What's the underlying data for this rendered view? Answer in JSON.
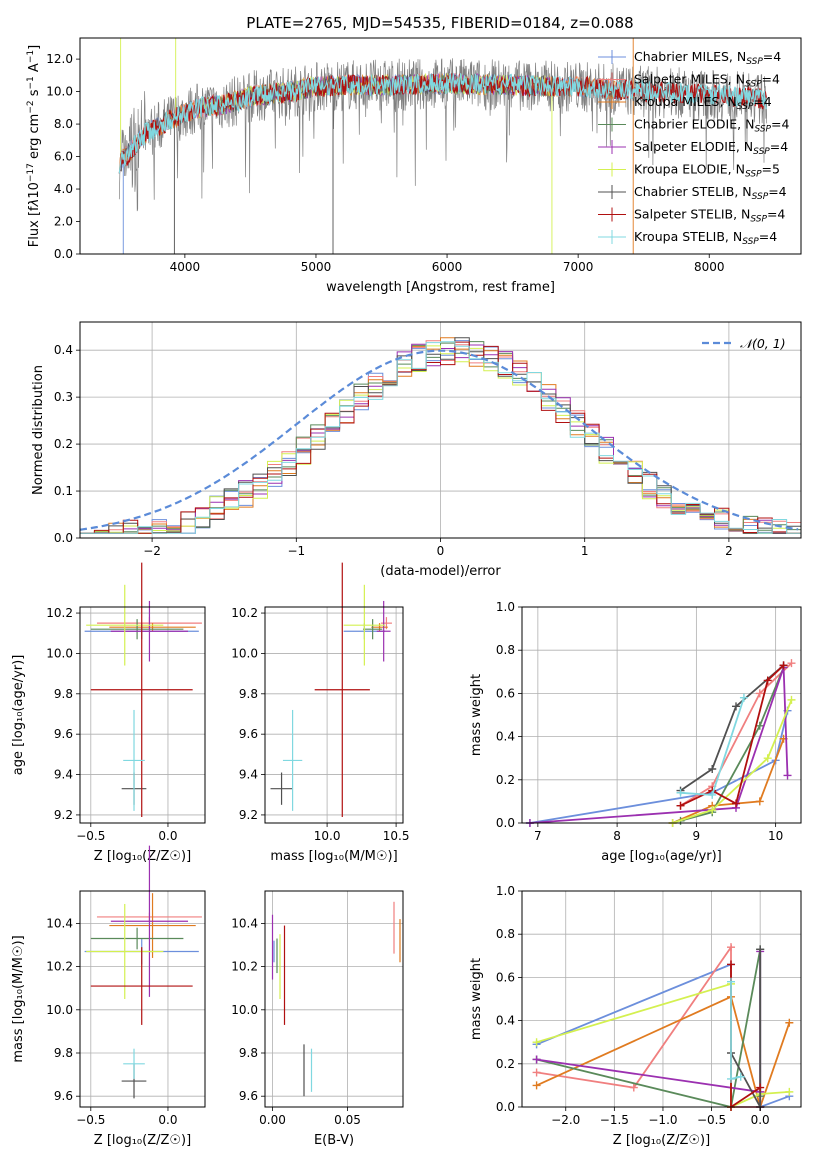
{
  "title": "PLATE=2765, MJD=54535, FIBERID=0184, z=0.088",
  "colors": {
    "chab_miles": "#6c8fdc",
    "salp_miles": "#f07f7f",
    "krou_miles": "#e07b20",
    "chab_elodie": "#5a8a5a",
    "salp_elodie": "#9b30b0",
    "krou_elodie": "#d4f050",
    "chab_stelib": "#505050",
    "salp_stelib": "#b01010",
    "krou_stelib": "#80d8e0",
    "data": "#808080",
    "normal": "#5b8bd8"
  },
  "chart_data": [
    {
      "id": "spectrum",
      "type": "line",
      "xlabel": "wavelength [Angstrom, rest frame]",
      "ylabel_html": "Flux [f<tspan font-style='italic'>λ</tspan>10<tspan dy='-5' font-size='9'>−17</tspan><tspan dy='5'> erg cm</tspan><tspan dy='-5' font-size='9'>−2</tspan><tspan dy='5'> s</tspan><tspan dy='-5' font-size='9'>−1</tspan><tspan dy='5'> A</tspan><tspan dy='-5' font-size='9'>−1</tspan><tspan dy='5'>]</tspan>",
      "xlim": [
        3200,
        8700
      ],
      "ylim": [
        0,
        13.3
      ],
      "xticks": [
        4000,
        5000,
        6000,
        7000,
        8000
      ],
      "yticks": [
        0,
        2,
        4,
        6,
        8,
        10,
        12
      ],
      "continuum": [
        [
          3500,
          5.6
        ],
        [
          3700,
          7.4
        ],
        [
          3900,
          8.3
        ],
        [
          4100,
          9.0
        ],
        [
          4300,
          9.2
        ],
        [
          4500,
          9.7
        ],
        [
          4800,
          10.0
        ],
        [
          5000,
          10.3
        ],
        [
          5200,
          10.4
        ],
        [
          5500,
          10.4
        ],
        [
          6000,
          10.5
        ],
        [
          6500,
          10.4
        ],
        [
          7000,
          10.3
        ],
        [
          7500,
          10.0
        ],
        [
          8000,
          9.8
        ],
        [
          8500,
          9.5
        ]
      ],
      "legend": [
        {
          "label": "Chabrier MILES, N",
          "sub": "SSP",
          "suffix": "=4",
          "color_key": "chab_miles"
        },
        {
          "label": "Salpeter MILES, N",
          "sub": "SSP",
          "suffix": "=4",
          "color_key": "salp_miles"
        },
        {
          "label": "Kroupa MILES, N",
          "sub": "SSP",
          "suffix": "=4",
          "color_key": "krou_miles"
        },
        {
          "label": "Chabrier ELODIE, N",
          "sub": "SSP",
          "suffix": "=4",
          "color_key": "chab_elodie"
        },
        {
          "label": "Salpeter ELODIE, N",
          "sub": "SSP",
          "suffix": "=4",
          "color_key": "salp_elodie"
        },
        {
          "label": "Kroupa ELODIE, N",
          "sub": "SSP",
          "suffix": "=5",
          "color_key": "krou_elodie"
        },
        {
          "label": "Chabrier STELIB, N",
          "sub": "SSP",
          "suffix": "=4",
          "color_key": "chab_stelib"
        },
        {
          "label": "Salpeter STELIB, N",
          "sub": "SSP",
          "suffix": "=4",
          "color_key": "salp_stelib"
        },
        {
          "label": "Kroupa STELIB, N",
          "sub": "SSP",
          "suffix": "=4",
          "color_key": "krou_stelib"
        }
      ]
    },
    {
      "id": "residuals",
      "type": "histogram",
      "xlabel": "(data-model)/error",
      "ylabel": "Normed distribution",
      "xlim": [
        -2.5,
        2.5
      ],
      "ylim": [
        0,
        0.46
      ],
      "xticks": [
        -2,
        -1,
        0,
        1,
        2
      ],
      "xtick_labels": [
        "−2",
        "−1",
        "0",
        "1",
        "2"
      ],
      "yticks": [
        0.0,
        0.1,
        0.2,
        0.3,
        0.4
      ],
      "ytick_labels": [
        "0.0",
        "0.1",
        "0.2",
        "0.3",
        "0.4"
      ],
      "legend": "𝒩(0, 1)",
      "bin_width": 0.1
    },
    {
      "id": "age_vs_Z",
      "type": "errorbar",
      "xlabel": "Z [log₁₀(Z/Z☉)]",
      "ylabel": "age  [log₁₀(age/yr)]",
      "xlim": [
        -0.57,
        0.24
      ],
      "ylim": [
        9.16,
        10.23
      ],
      "xticks": [
        -0.5,
        0.0
      ],
      "xtick_labels": [
        "−0.5",
        "0.0"
      ],
      "yticks": [
        9.2,
        9.4,
        9.6,
        9.8,
        10.0,
        10.2
      ],
      "points": [
        {
          "c": "chab_miles",
          "x": -0.17,
          "xe": 0.37,
          "y": 10.11,
          "ye": 0.04
        },
        {
          "c": "salp_miles",
          "x": -0.12,
          "xe": 0.34,
          "y": 10.15,
          "ye": 0.03
        },
        {
          "c": "krou_miles",
          "x": -0.1,
          "xe": 0.28,
          "y": 10.13,
          "ye": 0.02
        },
        {
          "c": "chab_elodie",
          "x": -0.2,
          "xe": 0.3,
          "y": 10.12,
          "ye": 0.05
        },
        {
          "c": "salp_elodie",
          "x": -0.12,
          "xe": 0.25,
          "y": 10.11,
          "ye": 0.15
        },
        {
          "c": "krou_elodie",
          "x": -0.28,
          "xe": 0.25,
          "y": 10.14,
          "ye": 0.2
        },
        {
          "c": "chab_stelib",
          "x": -0.22,
          "xe": 0.08,
          "y": 9.33,
          "ye": 0.08
        },
        {
          "c": "salp_stelib",
          "x": -0.17,
          "xe": 0.33,
          "y": 9.82,
          "ye": 0.63
        },
        {
          "c": "krou_stelib",
          "x": -0.22,
          "xe": 0.07,
          "y": 9.47,
          "ye": 0.25
        }
      ]
    },
    {
      "id": "age_vs_mass",
      "type": "errorbar",
      "xlabel": "mass [log₁₀(M/M☉)]",
      "ylabel": "",
      "xlim": [
        9.55,
        10.55
      ],
      "ylim": [
        9.16,
        10.23
      ],
      "xticks": [
        10.0,
        10.5
      ],
      "xtick_labels": [
        "10.0",
        "10.5"
      ],
      "yticks": [
        9.2,
        9.4,
        9.6,
        9.8,
        10.0,
        10.2
      ],
      "points": [
        {
          "c": "chab_miles",
          "x": 10.27,
          "xe": 0.15,
          "y": 10.11,
          "ye": 0.04
        },
        {
          "c": "salp_miles",
          "x": 10.43,
          "xe": 0.04,
          "y": 10.15,
          "ye": 0.03
        },
        {
          "c": "krou_miles",
          "x": 10.38,
          "xe": 0.06,
          "y": 10.13,
          "ye": 0.02
        },
        {
          "c": "chab_elodie",
          "x": 10.33,
          "xe": 0.07,
          "y": 10.12,
          "ye": 0.05
        },
        {
          "c": "salp_elodie",
          "x": 10.41,
          "xe": 0.05,
          "y": 10.11,
          "ye": 0.15
        },
        {
          "c": "krou_elodie",
          "x": 10.27,
          "xe": 0.15,
          "y": 10.14,
          "ye": 0.2
        },
        {
          "c": "chab_stelib",
          "x": 9.67,
          "xe": 0.08,
          "y": 9.33,
          "ye": 0.08
        },
        {
          "c": "salp_stelib",
          "x": 10.11,
          "xe": 0.2,
          "y": 9.82,
          "ye": 0.63
        },
        {
          "c": "krou_stelib",
          "x": 9.75,
          "xe": 0.07,
          "y": 9.47,
          "ye": 0.25
        }
      ]
    },
    {
      "id": "mass_vs_Z",
      "type": "errorbar",
      "xlabel": "Z [log₁₀(Z/Z☉)]",
      "ylabel": "mass [log₁₀(M/M☉)]",
      "xlim": [
        -0.57,
        0.24
      ],
      "ylim": [
        9.55,
        10.55
      ],
      "xticks": [
        -0.5,
        0.0
      ],
      "xtick_labels": [
        "−0.5",
        "0.0"
      ],
      "yticks": [
        9.6,
        9.8,
        10.0,
        10.2,
        10.4
      ],
      "points": [
        {
          "c": "chab_miles",
          "x": -0.17,
          "xe": 0.37,
          "y": 10.27,
          "ye": 0.06
        },
        {
          "c": "salp_miles",
          "x": -0.12,
          "xe": 0.34,
          "y": 10.43,
          "ye": 0.02
        },
        {
          "c": "krou_miles",
          "x": -0.1,
          "xe": 0.28,
          "y": 10.39,
          "ye": 0.15
        },
        {
          "c": "chab_elodie",
          "x": -0.2,
          "xe": 0.3,
          "y": 10.33,
          "ye": 0.05
        },
        {
          "c": "salp_elodie",
          "x": -0.12,
          "xe": 0.25,
          "y": 10.41,
          "ye": 0.35
        },
        {
          "c": "krou_elodie",
          "x": -0.28,
          "xe": 0.25,
          "y": 10.27,
          "ye": 0.22
        },
        {
          "c": "chab_stelib",
          "x": -0.22,
          "xe": 0.08,
          "y": 9.67,
          "ye": 0.08
        },
        {
          "c": "salp_stelib",
          "x": -0.17,
          "xe": 0.33,
          "y": 10.11,
          "ye": 0.18
        },
        {
          "c": "krou_stelib",
          "x": -0.22,
          "xe": 0.07,
          "y": 9.75,
          "ye": 0.07
        }
      ]
    },
    {
      "id": "mass_vs_ebv",
      "type": "errorbar",
      "xlabel": "E(B-V)",
      "ylabel": "",
      "xlim": [
        -0.005,
        0.087
      ],
      "ylim": [
        9.55,
        10.55
      ],
      "xticks": [
        0.0,
        0.05
      ],
      "xtick_labels": [
        "0.00",
        "0.05"
      ],
      "yticks": [
        9.6,
        9.8,
        10.0,
        10.2,
        10.4
      ],
      "points": [
        {
          "c": "chab_miles",
          "x": 0.001,
          "xe": 0,
          "y": 10.27,
          "ye": 0.05
        },
        {
          "c": "salp_miles",
          "x": 0.081,
          "xe": 0,
          "y": 10.38,
          "ye": 0.12
        },
        {
          "c": "krou_miles",
          "x": 0.085,
          "xe": 0,
          "y": 10.32,
          "ye": 0.1
        },
        {
          "c": "chab_elodie",
          "x": 0.003,
          "xe": 0,
          "y": 10.25,
          "ye": 0.08
        },
        {
          "c": "salp_elodie",
          "x": 0.0,
          "xe": 0,
          "y": 10.29,
          "ye": 0.15
        },
        {
          "c": "krou_elodie",
          "x": 0.005,
          "xe": 0,
          "y": 10.2,
          "ye": 0.15
        },
        {
          "c": "chab_stelib",
          "x": 0.021,
          "xe": 0,
          "y": 9.72,
          "ye": 0.12
        },
        {
          "c": "salp_stelib",
          "x": 0.008,
          "xe": 0,
          "y": 10.16,
          "ye": 0.23
        },
        {
          "c": "krou_stelib",
          "x": 0.026,
          "xe": 0,
          "y": 9.72,
          "ye": 0.1
        }
      ]
    },
    {
      "id": "weight_vs_age",
      "type": "line",
      "xlabel": "age  [log₁₀(age/yr)]",
      "ylabel": "mass weight",
      "xlim": [
        6.8,
        10.32
      ],
      "ylim": [
        0,
        1
      ],
      "xticks": [
        7,
        8,
        9,
        10
      ],
      "xtick_labels": [
        "7",
        "8",
        "9",
        "10"
      ],
      "yticks": [
        0.0,
        0.2,
        0.4,
        0.6,
        0.8,
        1.0
      ],
      "yticklabels": [
        "0.0",
        "0.2",
        "0.4",
        "0.6",
        "0.8",
        "1.0"
      ],
      "series": [
        {
          "c": "chab_miles",
          "x": [
            6.9,
            9.2,
            10.0,
            10.15
          ],
          "y": [
            0.0,
            0.14,
            0.29,
            0.52
          ]
        },
        {
          "c": "salp_miles",
          "x": [
            8.8,
            9.2,
            9.8,
            10.2
          ],
          "y": [
            0.08,
            0.17,
            0.6,
            0.74
          ]
        },
        {
          "c": "krou_miles",
          "x": [
            8.7,
            9.2,
            9.8,
            10.1
          ],
          "y": [
            0.0,
            0.08,
            0.1,
            0.39
          ]
        },
        {
          "c": "chab_elodie",
          "x": [
            8.8,
            9.2,
            9.8,
            10.1
          ],
          "y": [
            0.01,
            0.05,
            0.45,
            0.72
          ]
        },
        {
          "c": "salp_elodie",
          "x": [
            6.9,
            9.5,
            10.1,
            10.15
          ],
          "y": [
            0.0,
            0.07,
            0.72,
            0.22
          ]
        },
        {
          "c": "krou_elodie",
          "x": [
            8.7,
            9.2,
            9.9,
            10.2
          ],
          "y": [
            0.0,
            0.06,
            0.3,
            0.57
          ]
        },
        {
          "c": "chab_stelib",
          "x": [
            8.8,
            9.2,
            9.5,
            10.1
          ],
          "y": [
            0.15,
            0.25,
            0.54,
            0.73
          ]
        },
        {
          "c": "salp_stelib",
          "x": [
            8.8,
            9.2,
            9.5,
            9.9,
            10.1
          ],
          "y": [
            0.08,
            0.15,
            0.09,
            0.66,
            0.73
          ]
        },
        {
          "c": "krou_stelib",
          "x": [
            8.8,
            9.2,
            9.6
          ],
          "y": [
            0.14,
            0.13,
            0.58
          ]
        }
      ]
    },
    {
      "id": "weight_vs_Z",
      "type": "line",
      "xlabel": "Z [log₁₀(Z/Z☉)]",
      "ylabel": "mass weight",
      "xlim": [
        -2.45,
        0.42
      ],
      "ylim": [
        0,
        1
      ],
      "xticks": [
        -2.0,
        -1.5,
        -1.0,
        -0.5,
        0.0
      ],
      "xtick_labels": [
        "−2.0",
        "−1.5",
        "−1.0",
        "−0.5",
        "0.0"
      ],
      "yticks": [
        0.0,
        0.2,
        0.4,
        0.6,
        0.8,
        1.0
      ],
      "yticklabels": [
        "0.0",
        "0.2",
        "0.4",
        "0.6",
        "0.8",
        "1.0"
      ],
      "series": [
        {
          "c": "chab_miles",
          "x": [
            -2.3,
            -0.3,
            -0.3,
            0.0,
            0.3
          ],
          "y": [
            0.29,
            0.66,
            0.0,
            0.0,
            0.05
          ]
        },
        {
          "c": "salp_miles",
          "x": [
            -2.3,
            -1.3,
            -0.3,
            -0.3,
            0.0
          ],
          "y": [
            0.16,
            0.09,
            0.74,
            0.0,
            0.0
          ]
        },
        {
          "c": "krou_miles",
          "x": [
            -2.3,
            -0.3,
            0.0,
            0.3
          ],
          "y": [
            0.1,
            0.51,
            0.0,
            0.39
          ]
        },
        {
          "c": "chab_elodie",
          "x": [
            -2.3,
            -0.3,
            0.0,
            0.0
          ],
          "y": [
            0.22,
            0.0,
            0.73,
            0.05
          ]
        },
        {
          "c": "salp_elodie",
          "x": [
            -2.3,
            0.0,
            0.0,
            0.0
          ],
          "y": [
            0.22,
            0.07,
            0.72,
            0.0
          ]
        },
        {
          "c": "krou_elodie",
          "x": [
            -2.3,
            -0.3,
            -0.3,
            0.0,
            0.3
          ],
          "y": [
            0.3,
            0.57,
            0.0,
            0.06,
            0.07
          ]
        },
        {
          "c": "chab_stelib",
          "x": [
            -0.3,
            0.0,
            0.0
          ],
          "y": [
            0.25,
            0.0,
            0.73
          ]
        },
        {
          "c": "salp_stelib",
          "x": [
            -0.3,
            -0.3,
            0.0
          ],
          "y": [
            0.66,
            0.0,
            0.09
          ]
        },
        {
          "c": "krou_stelib",
          "x": [
            -0.3,
            -0.3,
            -0.2
          ],
          "y": [
            0.58,
            0.13,
            0.14
          ]
        }
      ]
    }
  ]
}
